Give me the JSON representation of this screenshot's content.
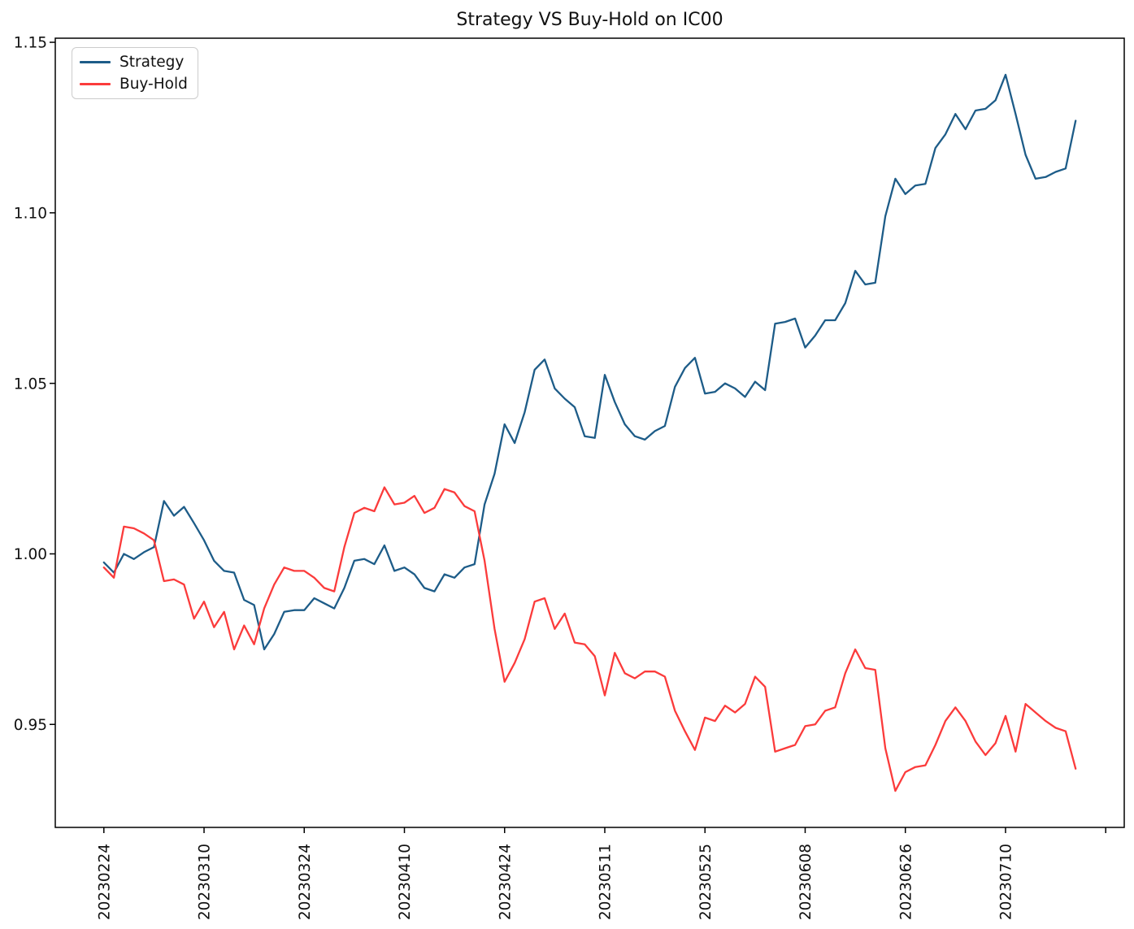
{
  "figure": {
    "background": "#ffffff",
    "text_color": "#111111",
    "axis_color": "#000000"
  },
  "chart_data": {
    "type": "line",
    "title": "Strategy VS Buy-Hold on IC00",
    "xlabel": "",
    "ylabel": "",
    "grid": false,
    "legend_position": "upper-left",
    "ylim": [
      0.9198,
      1.1512
    ],
    "xlim_index": [
      -4.85,
      101.85
    ],
    "ytick_labels": [
      "0.95",
      "1.00",
      "1.05",
      "1.10",
      "1.15"
    ],
    "xtick_every": 10,
    "xtick_label_indices": [
      0,
      10,
      20,
      30,
      40,
      50,
      60,
      70,
      80,
      90
    ],
    "xtick_unlabeled_indices": [
      100
    ],
    "x_dates": [
      "20230224",
      "20230227",
      "20230228",
      "20230301",
      "20230302",
      "20230303",
      "20230306",
      "20230307",
      "20230308",
      "20230309",
      "20230310",
      "20230313",
      "20230314",
      "20230315",
      "20230316",
      "20230317",
      "20230320",
      "20230321",
      "20230322",
      "20230323",
      "20230324",
      "20230327",
      "20230328",
      "20230329",
      "20230330",
      "20230331",
      "20230403",
      "20230404",
      "20230406",
      "20230407",
      "20230410",
      "20230411",
      "20230412",
      "20230413",
      "20230414",
      "20230417",
      "20230418",
      "20230419",
      "20230420",
      "20230421",
      "20230424",
      "20230425",
      "20230426",
      "20230427",
      "20230428",
      "20230504",
      "20230505",
      "20230508",
      "20230509",
      "20230510",
      "20230511",
      "20230512",
      "20230515",
      "20230516",
      "20230517",
      "20230518",
      "20230519",
      "20230522",
      "20230523",
      "20230524",
      "20230525",
      "20230526",
      "20230529",
      "20230530",
      "20230531",
      "20230601",
      "20230602",
      "20230605",
      "20230606",
      "20230607",
      "20230608",
      "20230609",
      "20230612",
      "20230613",
      "20230614",
      "20230615",
      "20230616",
      "20230619",
      "20230620",
      "20230621",
      "20230626",
      "20230627",
      "20230628",
      "20230629",
      "20230630",
      "20230703",
      "20230704",
      "20230705",
      "20230706",
      "20230707",
      "20230710",
      "20230711",
      "20230712",
      "20230713",
      "20230714",
      "20230717",
      "20230718",
      "20230719"
    ],
    "series": [
      {
        "name": "Strategy",
        "color": "#1d5c88",
        "values": [
          0.9975,
          0.9945,
          1.0,
          0.9985,
          1.0005,
          1.002,
          1.0155,
          1.0112,
          1.0138,
          1.009,
          1.004,
          0.998,
          0.995,
          0.9945,
          0.9865,
          0.985,
          0.972,
          0.9765,
          0.983,
          0.9835,
          0.9835,
          0.987,
          0.9855,
          0.984,
          0.99,
          0.998,
          0.9985,
          0.997,
          1.0025,
          0.995,
          0.996,
          0.994,
          0.99,
          0.989,
          0.994,
          0.993,
          0.996,
          0.997,
          1.0145,
          1.0235,
          1.038,
          1.0325,
          1.0415,
          1.054,
          1.057,
          1.0485,
          1.0455,
          1.043,
          1.0345,
          1.034,
          1.0525,
          1.0445,
          1.038,
          1.0345,
          1.0335,
          1.036,
          1.0375,
          1.049,
          1.0545,
          1.0575,
          1.047,
          1.0475,
          1.05,
          1.0485,
          1.046,
          1.0505,
          1.048,
          1.0675,
          1.068,
          1.069,
          1.0605,
          1.064,
          1.0685,
          1.0685,
          1.0735,
          1.083,
          1.079,
          1.0795,
          1.099,
          1.11,
          1.1055,
          1.108,
          1.1085,
          1.119,
          1.123,
          1.129,
          1.1245,
          1.13,
          1.1305,
          1.133,
          1.1405,
          1.129,
          1.117,
          1.11,
          1.1105,
          1.112,
          1.113,
          1.127
        ]
      },
      {
        "name": "Buy-Hold",
        "color": "#fb3b3b",
        "values": [
          0.996,
          0.993,
          1.008,
          1.0075,
          1.006,
          1.004,
          0.992,
          0.9925,
          0.991,
          0.981,
          0.986,
          0.9785,
          0.983,
          0.972,
          0.979,
          0.9735,
          0.984,
          0.991,
          0.996,
          0.995,
          0.995,
          0.993,
          0.99,
          0.989,
          1.002,
          1.012,
          1.0135,
          1.0125,
          1.0195,
          1.0145,
          1.015,
          1.017,
          1.012,
          1.0135,
          1.019,
          1.018,
          1.014,
          1.0125,
          0.998,
          0.978,
          0.9625,
          0.968,
          0.975,
          0.986,
          0.987,
          0.978,
          0.9825,
          0.974,
          0.9735,
          0.97,
          0.9585,
          0.971,
          0.965,
          0.9635,
          0.9655,
          0.9655,
          0.964,
          0.954,
          0.948,
          0.9425,
          0.952,
          0.951,
          0.9555,
          0.9535,
          0.956,
          0.964,
          0.961,
          0.942,
          0.943,
          0.944,
          0.9495,
          0.95,
          0.954,
          0.955,
          0.965,
          0.972,
          0.9665,
          0.966,
          0.943,
          0.9305,
          0.936,
          0.9375,
          0.938,
          0.944,
          0.951,
          0.955,
          0.951,
          0.945,
          0.941,
          0.9445,
          0.9525,
          0.942,
          0.956,
          0.9535,
          0.951,
          0.949,
          0.948,
          0.937
        ]
      }
    ]
  }
}
